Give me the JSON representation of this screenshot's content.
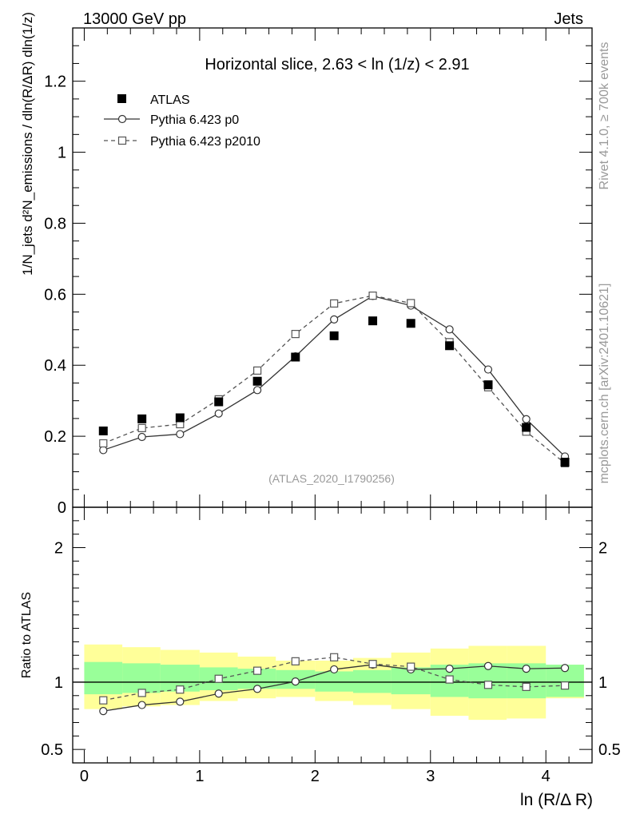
{
  "header": {
    "left_label": "13000 GeV pp",
    "right_label": "Jets"
  },
  "side_labels": {
    "rivet": "Rivet 4.1.0, ≥ 700k events",
    "mcplots": "mcplots.cern.ch [arXiv:2401.10621]"
  },
  "colors": {
    "data": "#000000",
    "p0": "#333333",
    "p2010": "#555555",
    "band_inner": "#99ff99",
    "band_outer": "#ffff99",
    "watermark": "#999999"
  },
  "chart_data": [
    {
      "type": "scatter",
      "panel": "main",
      "title": "Horizontal slice, 2.63 < ln (1/z) < 2.91",
      "watermark": "(ATLAS_2020_I1790256)",
      "ylabel": "1/N_jets d²N_emissions / dln(R/ΔR) dln(1/z)",
      "ylim": [
        0,
        1.35
      ],
      "xlim": [
        -0.1,
        4.4
      ],
      "yticks": [
        {
          "v": 0,
          "label": "0"
        },
        {
          "v": 0.2,
          "label": "0.2"
        },
        {
          "v": 0.4,
          "label": "0.4"
        },
        {
          "v": 0.6,
          "label": "0.6"
        },
        {
          "v": 0.8,
          "label": "0.8"
        },
        {
          "v": 1.0,
          "label": "1"
        },
        {
          "v": 1.2,
          "label": "1.2"
        }
      ],
      "x": [
        0.165,
        0.5,
        0.83,
        1.165,
        1.5,
        1.83,
        2.165,
        2.5,
        2.83,
        3.165,
        3.5,
        3.83,
        4.165
      ],
      "legend": [
        {
          "name": "ATLAS",
          "marker": "filled-square"
        },
        {
          "name": "Pythia 6.423 p0",
          "marker": "open-circle",
          "line": "solid"
        },
        {
          "name": "Pythia 6.423 p2010",
          "marker": "open-square",
          "line": "dashed"
        }
      ],
      "series": [
        {
          "name": "ATLAS",
          "values": [
            0.215,
            0.249,
            0.252,
            0.297,
            0.355,
            0.423,
            0.483,
            0.525,
            0.518,
            0.455,
            0.345,
            0.225,
            0.127
          ]
        },
        {
          "name": "Pythia 6.423 p0",
          "values": [
            0.161,
            0.198,
            0.206,
            0.264,
            0.33,
            0.425,
            0.529,
            0.595,
            0.568,
            0.501,
            0.388,
            0.248,
            0.143
          ]
        },
        {
          "name": "Pythia 6.423 p2010",
          "values": [
            0.18,
            0.223,
            0.234,
            0.304,
            0.385,
            0.488,
            0.574,
            0.596,
            0.575,
            0.465,
            0.338,
            0.213,
            0.124
          ]
        }
      ]
    },
    {
      "type": "line",
      "panel": "ratio",
      "ylabel": "Ratio to ATLAS",
      "xlabel": "ln (R/Δ R)",
      "ylim": [
        0.4,
        2.3
      ],
      "xlim": [
        -0.1,
        4.4
      ],
      "reference_line": 1,
      "yticks": [
        {
          "v": 0.5,
          "label": "0.5"
        },
        {
          "v": 1,
          "label": "1"
        },
        {
          "v": 2,
          "label": "2"
        }
      ],
      "xticks": [
        {
          "v": 0,
          "label": "0"
        },
        {
          "v": 1,
          "label": "1"
        },
        {
          "v": 2,
          "label": "2"
        },
        {
          "v": 3,
          "label": "3"
        },
        {
          "v": 4,
          "label": "4"
        }
      ],
      "bins": [
        0,
        0.33,
        0.66,
        1.0,
        1.33,
        1.66,
        2.0,
        2.33,
        2.66,
        3.0,
        3.33,
        3.66,
        4.0,
        4.33
      ],
      "x": [
        0.165,
        0.5,
        0.83,
        1.165,
        1.5,
        1.83,
        2.165,
        2.5,
        2.83,
        3.165,
        3.5,
        3.83,
        4.165
      ],
      "band_inner": [
        [
          0.91,
          1.15
        ],
        [
          0.92,
          1.14
        ],
        [
          0.93,
          1.13
        ],
        [
          0.94,
          1.11
        ],
        [
          0.95,
          1.1
        ],
        [
          0.95,
          1.09
        ],
        [
          0.93,
          1.08
        ],
        [
          0.92,
          1.09
        ],
        [
          0.91,
          1.11
        ],
        [
          0.89,
          1.13
        ],
        [
          0.88,
          1.14
        ],
        [
          0.88,
          1.14
        ],
        [
          0.89,
          1.13
        ]
      ],
      "band_outer": [
        [
          0.8,
          1.28
        ],
        [
          0.82,
          1.26
        ],
        [
          0.83,
          1.24
        ],
        [
          0.86,
          1.22
        ],
        [
          0.88,
          1.19
        ],
        [
          0.89,
          1.16
        ],
        [
          0.86,
          1.16
        ],
        [
          0.83,
          1.18
        ],
        [
          0.8,
          1.22
        ],
        [
          0.75,
          1.25
        ],
        [
          0.72,
          1.27
        ],
        [
          0.73,
          1.27
        ],
        [
          0.88,
          1.13
        ]
      ],
      "series": [
        {
          "name": "Pythia 6.423 p0",
          "values": [
            0.785,
            0.83,
            0.855,
            0.915,
            0.95,
            1.005,
            1.095,
            1.13,
            1.095,
            1.1,
            1.12,
            1.1,
            1.105
          ]
        },
        {
          "name": "Pythia 6.423 p2010",
          "values": [
            0.865,
            0.92,
            0.945,
            1.025,
            1.085,
            1.155,
            1.185,
            1.135,
            1.115,
            1.02,
            0.98,
            0.965,
            0.975
          ]
        }
      ]
    }
  ]
}
